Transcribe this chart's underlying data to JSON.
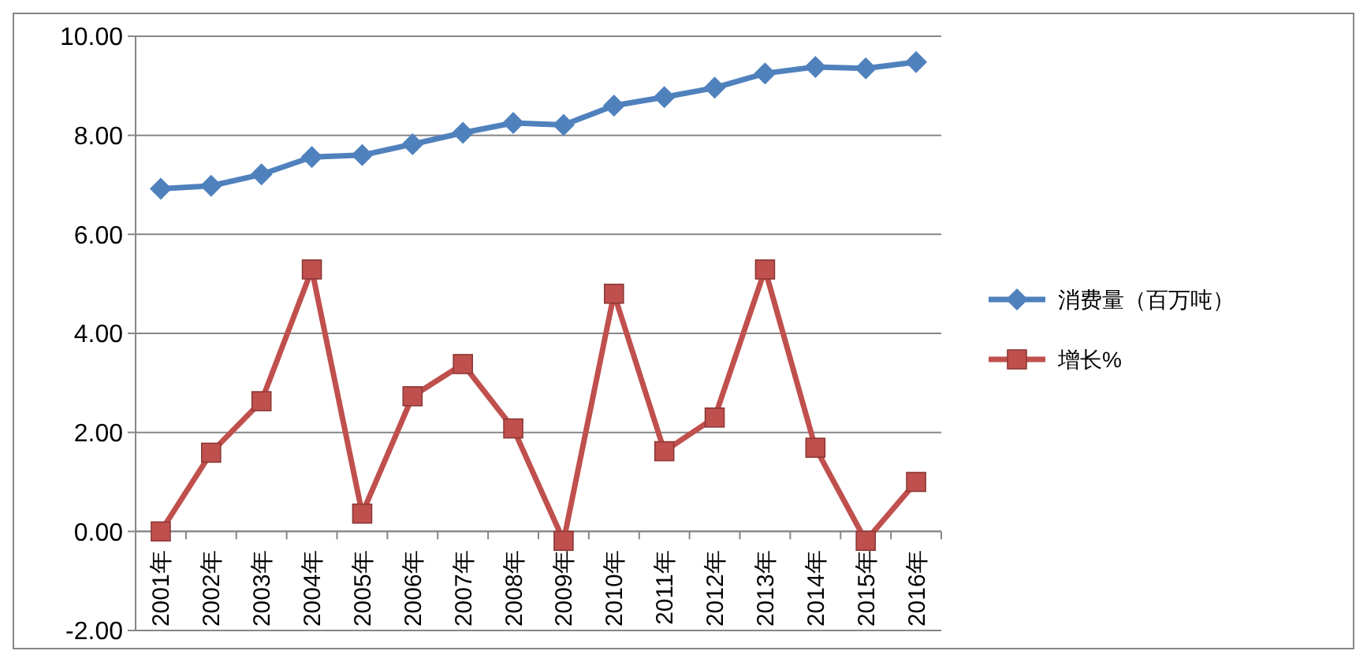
{
  "chart_data": {
    "type": "line",
    "categories": [
      "2001年",
      "2002年",
      "2003年",
      "2004年",
      "2005年",
      "2006年",
      "2007年",
      "2008年",
      "2009年",
      "2010年",
      "2011年",
      "2012年",
      "2013年",
      "2014年",
      "2015年",
      "2016年"
    ],
    "series": [
      {
        "name": "消费量（百万吨）",
        "color": "#4f81bd",
        "marker": "diamond",
        "values": [
          6.92,
          6.98,
          7.21,
          7.56,
          7.6,
          7.82,
          8.05,
          8.25,
          8.21,
          8.6,
          8.77,
          8.96,
          9.25,
          9.38,
          9.35,
          9.48
        ]
      },
      {
        "name": "增长%",
        "color": "#c0504d",
        "marker": "square",
        "values": [
          0,
          1.59,
          2.63,
          5.29,
          0.36,
          2.73,
          3.38,
          2.08,
          -0.19,
          4.8,
          1.62,
          2.3,
          5.29,
          1.69,
          -0.19,
          1.0
        ]
      }
    ],
    "ylim": [
      -2,
      10
    ],
    "yticks": [
      {
        "value": -2,
        "label": "-2.00"
      },
      {
        "value": 0,
        "label": "0.00"
      },
      {
        "value": 2,
        "label": "2.00"
      },
      {
        "value": 4,
        "label": "4.00"
      },
      {
        "value": 6,
        "label": "6.00"
      },
      {
        "value": 8,
        "label": "8.00"
      },
      {
        "value": 10,
        "label": "10.00"
      }
    ],
    "grid": "y",
    "legend": "right"
  }
}
